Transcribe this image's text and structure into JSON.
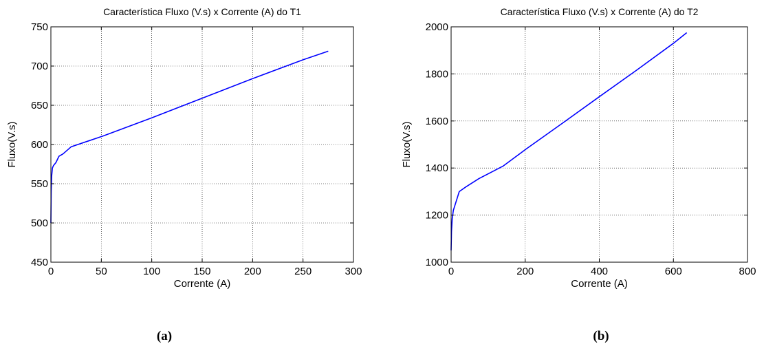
{
  "chart_data": [
    {
      "type": "line",
      "title": "Característica Fluxo (V.s) x Corrente (A) do T1",
      "xlabel": "Corrente (A)",
      "ylabel": "Fluxo(V.s)",
      "xlim": [
        0,
        300
      ],
      "ylim": [
        450,
        750
      ],
      "xticks": [
        "0",
        "50",
        "100",
        "150",
        "200",
        "250",
        "300"
      ],
      "yticks": [
        "450",
        "500",
        "550",
        "600",
        "650",
        "700",
        "750"
      ],
      "grid": true,
      "line_color": "#0000ff",
      "caption": "(a)",
      "series": [
        {
          "x": [
            0,
            0.3,
            0.8,
            1.5,
            2.5,
            5,
            8,
            12,
            20,
            52,
            100,
            150,
            200,
            250,
            275
          ],
          "y": [
            500,
            540,
            560,
            570,
            573,
            577,
            585,
            588,
            597,
            611,
            634,
            659,
            684,
            708,
            719
          ]
        }
      ]
    },
    {
      "type": "line",
      "title": "Característica Fluxo (V.s) x Corrente (A) do T2",
      "xlabel": "Corrente (A)",
      "ylabel": "Fluxo(V.s)",
      "xlim": [
        0,
        800
      ],
      "ylim": [
        1000,
        2000
      ],
      "xticks": [
        "0",
        "200",
        "400",
        "600",
        "800"
      ],
      "yticks": [
        "1000",
        "1200",
        "1400",
        "1600",
        "1800",
        "2000"
      ],
      "grid": true,
      "line_color": "#0000ff",
      "caption": "(b)",
      "series": [
        {
          "x": [
            0,
            1,
            3,
            6,
            12,
            22,
            40,
            75,
            140,
            200,
            300,
            400,
            500,
            600,
            636
          ],
          "y": [
            1050,
            1130,
            1185,
            1220,
            1250,
            1300,
            1320,
            1355,
            1408,
            1478,
            1590,
            1703,
            1815,
            1930,
            1975
          ]
        }
      ]
    }
  ]
}
